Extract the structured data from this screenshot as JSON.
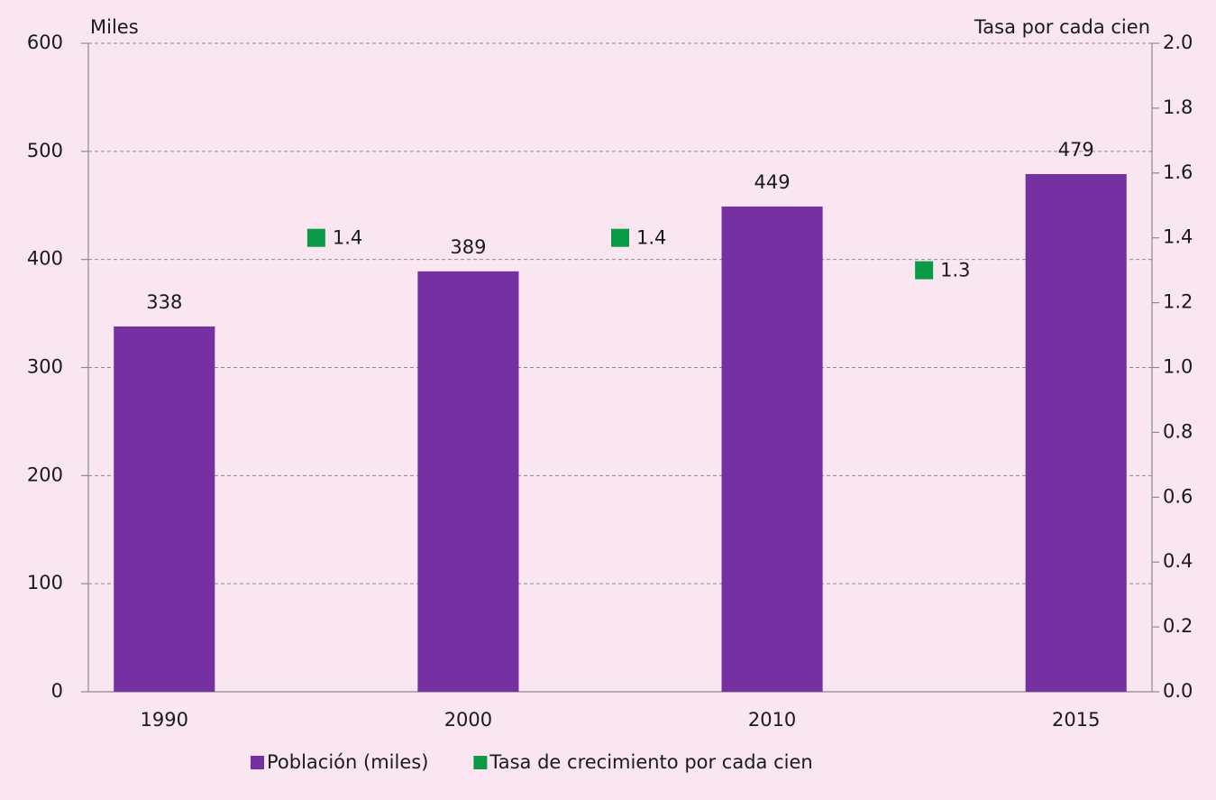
{
  "chart_data": {
    "type": "bar",
    "categories": [
      "1990",
      "2000",
      "2010",
      "2015"
    ],
    "y_label": "Miles",
    "y2_label": "Tasa por cada cien",
    "series": [
      {
        "name": "Población (miles)",
        "color": "#7530a2",
        "values": [
          338,
          389,
          449,
          479
        ]
      },
      {
        "name": "Tasa de crecimiento por cada cien",
        "color": "#0b9a48",
        "axis": "y2",
        "type": "scatter",
        "values": [
          null,
          1.4,
          1.4,
          1.3
        ]
      }
    ],
    "ylim": [
      0,
      600
    ],
    "yticks": [
      0,
      100,
      200,
      300,
      400,
      500,
      600
    ],
    "y2lim": [
      0,
      2.0
    ],
    "y2ticks": [
      {
        "value": 0,
        "label": "0.0"
      },
      0.2,
      0.4,
      0.6,
      0.8,
      {
        "value": 1,
        "label": "1.0"
      },
      1.2,
      1.4,
      1.6,
      1.8,
      {
        "value": 2,
        "label": "2.0"
      }
    ],
    "grid": true,
    "legend": "bottom"
  }
}
